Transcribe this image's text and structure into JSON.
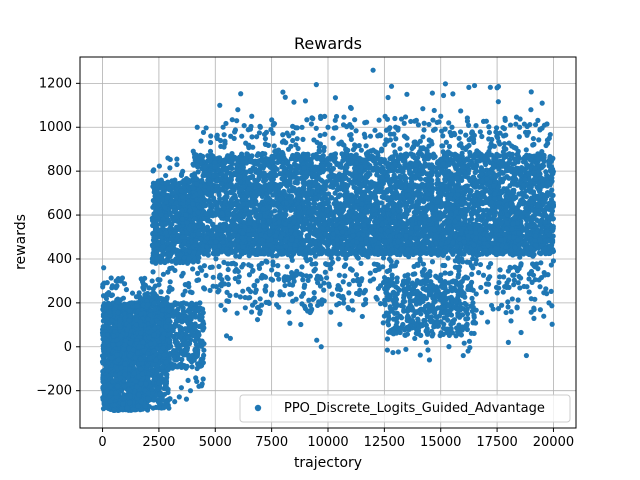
{
  "chart_data": {
    "type": "scatter",
    "title": "Rewards",
    "xlabel": "trajectory",
    "ylabel": "rewards",
    "xlim": [
      -1000,
      21000
    ],
    "ylim": [
      -370,
      1320
    ],
    "x_ticks": [
      0,
      2500,
      5000,
      7500,
      10000,
      12500,
      15000,
      17500,
      20000
    ],
    "x_tick_labels": [
      "0",
      "2500",
      "5000",
      "7500",
      "10000",
      "12500",
      "15000",
      "17500",
      "20000"
    ],
    "y_ticks": [
      -200,
      0,
      200,
      400,
      600,
      800,
      1000,
      1200
    ],
    "y_tick_labels": [
      "−200",
      "0",
      "200",
      "400",
      "600",
      "800",
      "1000",
      "1200"
    ],
    "grid": true,
    "legend_position": "lower-right",
    "series": [
      {
        "name": "PPO_Discrete_Logits_Guided_Advantage",
        "color": "#1f77b4",
        "marker": "circle",
        "points": [
          [
            50,
            360
          ],
          [
            100,
            -250
          ],
          [
            200,
            240
          ],
          [
            350,
            -180
          ],
          [
            400,
            120
          ],
          [
            500,
            -290
          ],
          [
            600,
            -150
          ],
          [
            700,
            300
          ],
          [
            800,
            50
          ],
          [
            900,
            -260
          ],
          [
            1000,
            180
          ],
          [
            1100,
            -280
          ],
          [
            1200,
            -40
          ],
          [
            1300,
            200
          ],
          [
            1400,
            -120
          ],
          [
            1500,
            100
          ],
          [
            1600,
            -220
          ],
          [
            1700,
            150
          ],
          [
            1800,
            20
          ],
          [
            1900,
            -270
          ],
          [
            2000,
            190
          ],
          [
            2100,
            -50
          ],
          [
            2200,
            300
          ],
          [
            2300,
            170
          ],
          [
            2400,
            430
          ],
          [
            2500,
            -240
          ],
          [
            2600,
            600
          ],
          [
            2700,
            330
          ],
          [
            2800,
            780
          ],
          [
            2900,
            860
          ],
          [
            3000,
            420
          ],
          [
            3100,
            700
          ],
          [
            3200,
            -250
          ],
          [
            3300,
            830
          ],
          [
            3400,
            480
          ],
          [
            3500,
            710
          ],
          [
            3600,
            200
          ],
          [
            3700,
            600
          ],
          [
            3800,
            760
          ],
          [
            3900,
            -200
          ],
          [
            4000,
            650
          ],
          [
            4200,
            1000
          ],
          [
            4500,
            530
          ],
          [
            4800,
            960
          ],
          [
            5000,
            600
          ],
          [
            5200,
            1100
          ],
          [
            5500,
            50
          ],
          [
            6000,
            1080
          ],
          [
            6500,
            770
          ],
          [
            7000,
            1000
          ],
          [
            7500,
            350
          ],
          [
            8000,
            1160
          ],
          [
            8500,
            570
          ],
          [
            9000,
            1120
          ],
          [
            9500,
            30
          ],
          [
            9700,
            0
          ],
          [
            10000,
            1000
          ],
          [
            10500,
            720
          ],
          [
            11000,
            1090
          ],
          [
            11500,
            470
          ],
          [
            12000,
            1260
          ],
          [
            12500,
            140
          ],
          [
            13000,
            1000
          ],
          [
            13500,
            1150
          ],
          [
            14000,
            80
          ],
          [
            14500,
            -60
          ],
          [
            15000,
            1050
          ],
          [
            15500,
            1000
          ],
          [
            16000,
            -40
          ],
          [
            16500,
            1190
          ],
          [
            17000,
            600
          ],
          [
            17500,
            1180
          ],
          [
            18000,
            20
          ],
          [
            18500,
            1000
          ],
          [
            18800,
            -40
          ],
          [
            19000,
            1080
          ],
          [
            19500,
            1110
          ],
          [
            19800,
            200
          ],
          [
            20000,
            640
          ]
        ],
        "bands": [
          {
            "x_range": [
              0,
              2000
            ],
            "y_range": [
              -290,
              200
            ],
            "count": 1400,
            "jitter_sparse": [
              -290,
              320
            ]
          },
          {
            "x_range": [
              1500,
              3000
            ],
            "y_range": [
              -280,
              250
            ],
            "count": 500,
            "jitter_sparse": [
              -280,
              300
            ]
          },
          {
            "x_range": [
              2000,
              4500
            ],
            "y_range": [
              -100,
              200
            ],
            "count": 450,
            "jitter_sparse": [
              -260,
              250
            ]
          },
          {
            "x_range": [
              2200,
              4200
            ],
            "y_range": [
              380,
              760
            ],
            "count": 700,
            "jitter_sparse": [
              240,
              860
            ]
          },
          {
            "x_range": [
              4000,
              20000
            ],
            "y_range": [
              420,
              560
            ],
            "count": 2600,
            "jitter_sparse": [
              250,
              700
            ]
          },
          {
            "x_range": [
              4000,
              20000
            ],
            "y_range": [
              560,
              880
            ],
            "count": 3400,
            "jitter_sparse": [
              300,
              1000
            ]
          },
          {
            "x_range": [
              12500,
              16500
            ],
            "y_range": [
              50,
              300
            ],
            "count": 420,
            "jitter_sparse": [
              -40,
              380
            ]
          },
          {
            "x_range": [
              5000,
              20000
            ],
            "y_range": [
              150,
              330
            ],
            "count": 260,
            "jitter_sparse": [
              0,
              380
            ]
          },
          {
            "x_range": [
              5000,
              20000
            ],
            "y_range": [
              850,
              1050
            ],
            "count": 260,
            "jitter_sparse": [
              850,
              1200
            ]
          }
        ]
      }
    ]
  }
}
